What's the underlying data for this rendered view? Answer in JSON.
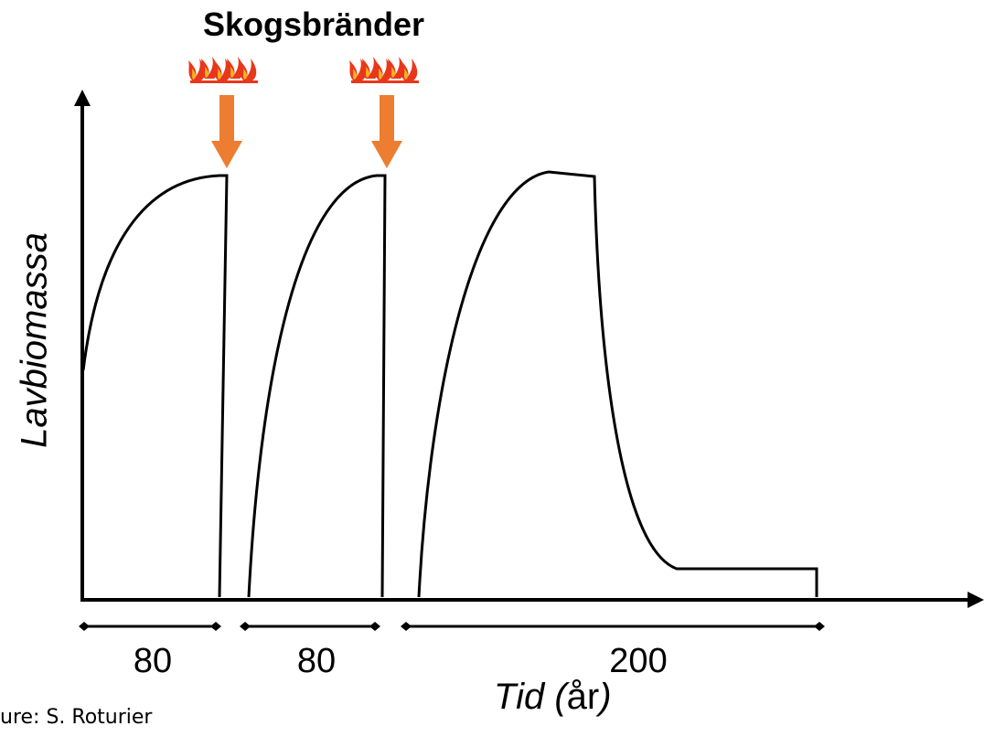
{
  "title": "Skogsbränder",
  "y_axis_label": "Lavbiomassa",
  "x_axis_label": {
    "main": "Tid",
    "open_paren": " (",
    "unit": "år",
    "close_paren": ")"
  },
  "segments": [
    {
      "label": "80"
    },
    {
      "label": "80"
    },
    {
      "label": "200"
    }
  ],
  "fire_events": [
    {
      "icon": "fire-icon",
      "arrow_color": "#ED7D31"
    },
    {
      "icon": "fire-icon",
      "arrow_color": "#ED7D31"
    }
  ],
  "credit": "ure: S. Roturier",
  "colors": {
    "arrow": "#ED7D31",
    "flame_outer": "#E8371B",
    "flame_inner": "#F5B31C",
    "line": "#000000"
  }
}
